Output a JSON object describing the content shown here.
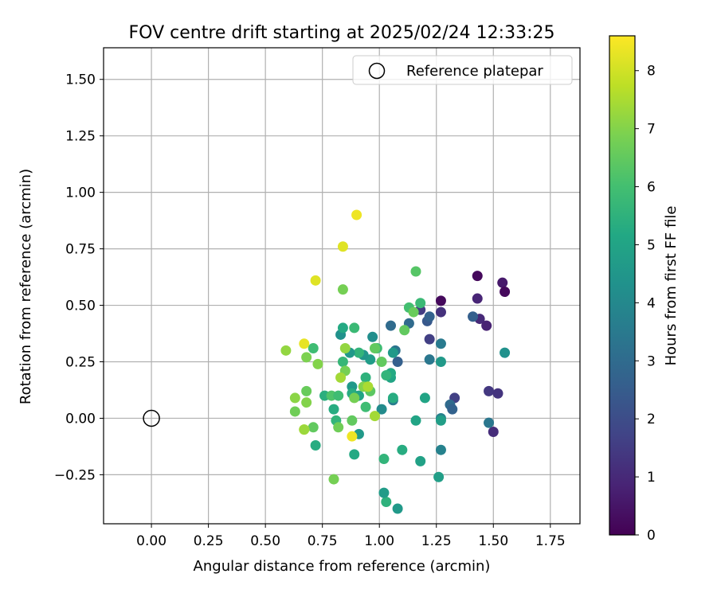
{
  "chart_data": {
    "type": "scatter",
    "title": "FOV centre drift starting at 2025/02/24 12:33:25",
    "xlabel": "Angular distance from reference (arcmin)",
    "ylabel": "Rotation from reference (arcmin)",
    "xlim": [
      -0.21,
      1.88
    ],
    "ylim": [
      -0.467,
      1.64
    ],
    "x_ticks": [
      0.0,
      0.25,
      0.5,
      0.75,
      1.0,
      1.25,
      1.5,
      1.75
    ],
    "x_tick_labels": [
      "0.00",
      "0.25",
      "0.50",
      "0.75",
      "1.00",
      "1.25",
      "1.50",
      "1.75"
    ],
    "y_ticks": [
      -0.25,
      0.0,
      0.25,
      0.5,
      0.75,
      1.0,
      1.25,
      1.5
    ],
    "y_tick_labels": [
      "−0.25",
      "0.00",
      "0.25",
      "0.50",
      "0.75",
      "1.00",
      "1.25",
      "1.50"
    ],
    "grid": true,
    "legend": {
      "placement": "top-right",
      "label": "Reference platepar"
    },
    "reference_point": {
      "x": 0.0,
      "y": 0.0
    },
    "colorbar": {
      "label": "Hours from first FF file",
      "min": 0,
      "max": 8.6,
      "ticks": [
        0,
        1,
        2,
        3,
        4,
        5,
        6,
        7,
        8
      ],
      "tick_labels": [
        "0",
        "1",
        "2",
        "3",
        "4",
        "5",
        "6",
        "7",
        "8"
      ],
      "colormap": "viridis"
    },
    "points": [
      {
        "x": 1.43,
        "y": 0.63,
        "h": 0.2
      },
      {
        "x": 1.54,
        "y": 0.6,
        "h": 0.6
      },
      {
        "x": 1.55,
        "y": 0.56,
        "h": 0.2
      },
      {
        "x": 1.27,
        "y": 0.52,
        "h": 0.2
      },
      {
        "x": 1.43,
        "y": 0.53,
        "h": 0.9
      },
      {
        "x": 1.44,
        "y": 0.44,
        "h": 1.0
      },
      {
        "x": 1.47,
        "y": 0.41,
        "h": 0.8
      },
      {
        "x": 1.27,
        "y": 0.47,
        "h": 1.2
      },
      {
        "x": 1.18,
        "y": 0.48,
        "h": 1.5
      },
      {
        "x": 1.22,
        "y": 0.35,
        "h": 1.6
      },
      {
        "x": 1.41,
        "y": 0.45,
        "h": 2.6
      },
      {
        "x": 1.21,
        "y": 0.43,
        "h": 2.4
      },
      {
        "x": 1.22,
        "y": 0.45,
        "h": 2.7
      },
      {
        "x": 1.13,
        "y": 0.42,
        "h": 3.0
      },
      {
        "x": 1.05,
        "y": 0.41,
        "h": 3.0
      },
      {
        "x": 1.27,
        "y": 0.33,
        "h": 3.5
      },
      {
        "x": 1.22,
        "y": 0.26,
        "h": 3.4
      },
      {
        "x": 1.08,
        "y": 0.25,
        "h": 2.6
      },
      {
        "x": 1.07,
        "y": 0.3,
        "h": 3.3
      },
      {
        "x": 1.33,
        "y": 0.09,
        "h": 1.6
      },
      {
        "x": 1.31,
        "y": 0.06,
        "h": 3.0
      },
      {
        "x": 1.32,
        "y": 0.04,
        "h": 2.7
      },
      {
        "x": 1.48,
        "y": 0.12,
        "h": 1.4
      },
      {
        "x": 1.52,
        "y": 0.11,
        "h": 1.3
      },
      {
        "x": 1.5,
        "y": -0.06,
        "h": 1.1
      },
      {
        "x": 1.48,
        "y": -0.02,
        "h": 3.4
      },
      {
        "x": 1.55,
        "y": 0.29,
        "h": 4.3
      },
      {
        "x": 1.27,
        "y": 0.0,
        "h": 3.8
      },
      {
        "x": 1.27,
        "y": -0.01,
        "h": 4.8
      },
      {
        "x": 1.27,
        "y": -0.14,
        "h": 3.8
      },
      {
        "x": 1.26,
        "y": -0.26,
        "h": 4.8
      },
      {
        "x": 1.27,
        "y": 0.25,
        "h": 4.6
      },
      {
        "x": 1.2,
        "y": 0.09,
        "h": 5.0
      },
      {
        "x": 1.16,
        "y": -0.01,
        "h": 5.0
      },
      {
        "x": 1.18,
        "y": -0.19,
        "h": 4.9
      },
      {
        "x": 1.1,
        "y": -0.14,
        "h": 5.3
      },
      {
        "x": 1.08,
        "y": -0.4,
        "h": 4.6
      },
      {
        "x": 1.03,
        "y": -0.37,
        "h": 5.5
      },
      {
        "x": 1.02,
        "y": -0.33,
        "h": 4.7
      },
      {
        "x": 1.02,
        "y": -0.18,
        "h": 5.6
      },
      {
        "x": 1.06,
        "y": 0.08,
        "h": 3.6
      },
      {
        "x": 1.01,
        "y": 0.04,
        "h": 4.1
      },
      {
        "x": 1.06,
        "y": 0.09,
        "h": 5.3
      },
      {
        "x": 1.05,
        "y": 0.18,
        "h": 5.0
      },
      {
        "x": 1.05,
        "y": 0.2,
        "h": 5.2
      },
      {
        "x": 1.03,
        "y": 0.19,
        "h": 5.6
      },
      {
        "x": 1.06,
        "y": 0.29,
        "h": 4.6
      },
      {
        "x": 0.97,
        "y": 0.36,
        "h": 4.2
      },
      {
        "x": 0.96,
        "y": 0.26,
        "h": 4.7
      },
      {
        "x": 0.93,
        "y": 0.28,
        "h": 4.5
      },
      {
        "x": 0.91,
        "y": 0.29,
        "h": 5.6
      },
      {
        "x": 0.87,
        "y": 0.29,
        "h": 4.6
      },
      {
        "x": 0.83,
        "y": 0.37,
        "h": 4.3
      },
      {
        "x": 0.84,
        "y": 0.4,
        "h": 5.2
      },
      {
        "x": 0.89,
        "y": 0.4,
        "h": 5.8
      },
      {
        "x": 0.99,
        "y": 0.31,
        "h": 5.9
      },
      {
        "x": 0.98,
        "y": 0.31,
        "h": 6.5
      },
      {
        "x": 1.01,
        "y": 0.25,
        "h": 6.5
      },
      {
        "x": 1.13,
        "y": 0.49,
        "h": 6.0
      },
      {
        "x": 1.15,
        "y": 0.47,
        "h": 6.6
      },
      {
        "x": 1.18,
        "y": 0.51,
        "h": 5.8
      },
      {
        "x": 1.16,
        "y": 0.65,
        "h": 6.3
      },
      {
        "x": 1.11,
        "y": 0.39,
        "h": 6.5
      },
      {
        "x": 0.88,
        "y": 0.14,
        "h": 4.6
      },
      {
        "x": 0.88,
        "y": 0.11,
        "h": 5.3
      },
      {
        "x": 0.91,
        "y": 0.1,
        "h": 5.0
      },
      {
        "x": 0.91,
        "y": -0.07,
        "h": 4.6
      },
      {
        "x": 0.94,
        "y": 0.18,
        "h": 5.5
      },
      {
        "x": 0.94,
        "y": 0.05,
        "h": 5.9
      },
      {
        "x": 0.96,
        "y": 0.12,
        "h": 6.4
      },
      {
        "x": 0.93,
        "y": 0.14,
        "h": 7.0
      },
      {
        "x": 0.95,
        "y": 0.14,
        "h": 7.5
      },
      {
        "x": 0.89,
        "y": 0.09,
        "h": 6.8
      },
      {
        "x": 0.98,
        "y": 0.01,
        "h": 7.4
      },
      {
        "x": 0.88,
        "y": -0.08,
        "h": 8.4
      },
      {
        "x": 0.89,
        "y": -0.16,
        "h": 5.2
      },
      {
        "x": 0.88,
        "y": -0.01,
        "h": 6.5
      },
      {
        "x": 0.8,
        "y": 0.04,
        "h": 5.3
      },
      {
        "x": 0.81,
        "y": -0.01,
        "h": 5.6
      },
      {
        "x": 0.82,
        "y": -0.04,
        "h": 6.7
      },
      {
        "x": 0.8,
        "y": -0.27,
        "h": 6.8
      },
      {
        "x": 0.76,
        "y": 0.1,
        "h": 5.4
      },
      {
        "x": 0.79,
        "y": 0.1,
        "h": 6.2
      },
      {
        "x": 0.82,
        "y": 0.1,
        "h": 5.9
      },
      {
        "x": 0.84,
        "y": 0.25,
        "h": 5.7
      },
      {
        "x": 0.85,
        "y": 0.21,
        "h": 6.8
      },
      {
        "x": 0.83,
        "y": 0.18,
        "h": 7.4
      },
      {
        "x": 0.85,
        "y": 0.31,
        "h": 7.2
      },
      {
        "x": 0.84,
        "y": 0.57,
        "h": 6.8
      },
      {
        "x": 0.84,
        "y": 0.76,
        "h": 8.2
      },
      {
        "x": 0.9,
        "y": 0.9,
        "h": 8.4
      },
      {
        "x": 0.72,
        "y": 0.61,
        "h": 8.2
      },
      {
        "x": 0.71,
        "y": 0.31,
        "h": 5.9
      },
      {
        "x": 0.73,
        "y": 0.24,
        "h": 7.0
      },
      {
        "x": 0.68,
        "y": 0.27,
        "h": 6.9
      },
      {
        "x": 0.67,
        "y": 0.33,
        "h": 8.3
      },
      {
        "x": 0.59,
        "y": 0.3,
        "h": 7.2
      },
      {
        "x": 0.72,
        "y": -0.12,
        "h": 5.3
      },
      {
        "x": 0.71,
        "y": -0.04,
        "h": 6.5
      },
      {
        "x": 0.67,
        "y": -0.05,
        "h": 8.5
      },
      {
        "x": 0.67,
        "y": -0.05,
        "h": 7.3
      },
      {
        "x": 0.68,
        "y": 0.07,
        "h": 7.0
      },
      {
        "x": 0.68,
        "y": 0.12,
        "h": 6.6
      },
      {
        "x": 0.63,
        "y": 0.09,
        "h": 7.1
      },
      {
        "x": 0.63,
        "y": 0.03,
        "h": 6.7
      }
    ]
  }
}
